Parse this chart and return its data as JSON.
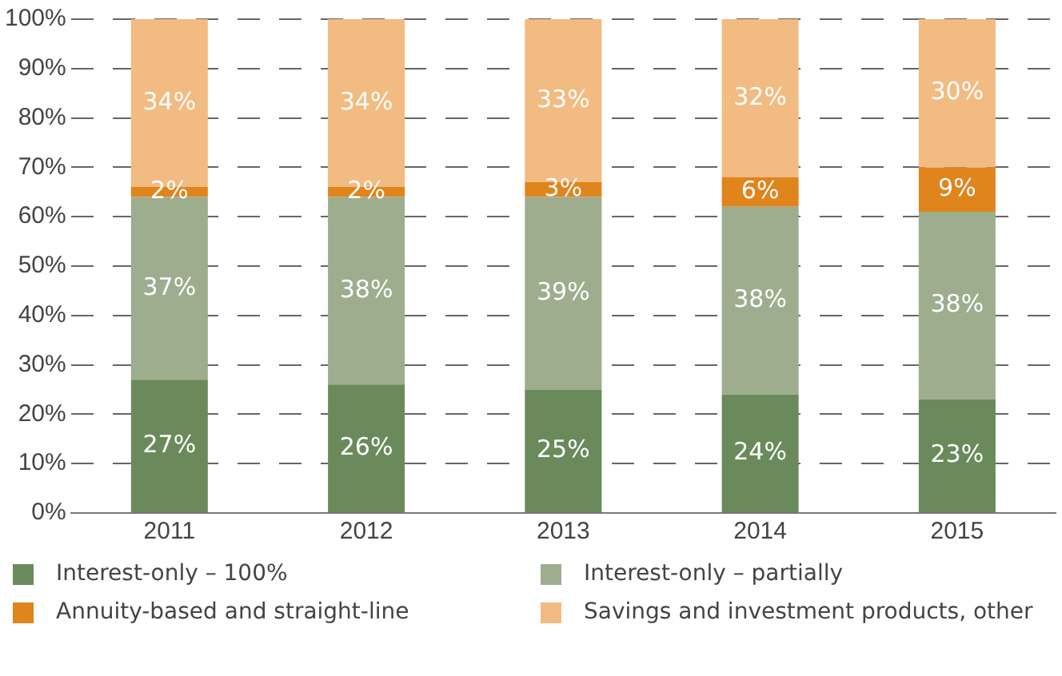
{
  "chart_data": {
    "type": "bar",
    "stacked": true,
    "categories": [
      "2011",
      "2012",
      "2013",
      "2014",
      "2015"
    ],
    "series": [
      {
        "name": "Interest-only – 100%",
        "color": "#6a8a5c",
        "values": [
          27,
          26,
          25,
          24,
          23
        ],
        "value_labels": [
          "27%",
          "26%",
          "25%",
          "24%",
          "23%"
        ]
      },
      {
        "name": "Interest-only – partially",
        "color": "#9dad8e",
        "values": [
          37,
          38,
          39,
          38,
          38
        ],
        "value_labels": [
          "37%",
          "38%",
          "39%",
          "38%",
          "38%"
        ]
      },
      {
        "name": "Annuity-based and straight-line",
        "color": "#e0841c",
        "values": [
          2,
          2,
          3,
          6,
          9
        ],
        "value_labels": [
          "2%",
          "2%",
          "3%",
          "6%",
          "9%"
        ]
      },
      {
        "name": "Savings and investment products, other",
        "color": "#f2bb82",
        "values": [
          34,
          34,
          33,
          32,
          30
        ],
        "value_labels": [
          "34%",
          "34%",
          "33%",
          "32%",
          "30%"
        ]
      }
    ],
    "ylim": [
      0,
      100
    ],
    "yticks": [
      {
        "value": 0,
        "label": "0%"
      },
      {
        "value": 10,
        "label": "10%"
      },
      {
        "value": 20,
        "label": "20%"
      },
      {
        "value": 30,
        "label": "30%"
      },
      {
        "value": 40,
        "label": "40%"
      },
      {
        "value": 50,
        "label": "50%"
      },
      {
        "value": 60,
        "label": "60%"
      },
      {
        "value": 70,
        "label": "70%"
      },
      {
        "value": 80,
        "label": "80%"
      },
      {
        "value": 90,
        "label": "90%"
      },
      {
        "value": 100,
        "label": "100%"
      }
    ],
    "grid": "y",
    "legend": "bottom"
  }
}
